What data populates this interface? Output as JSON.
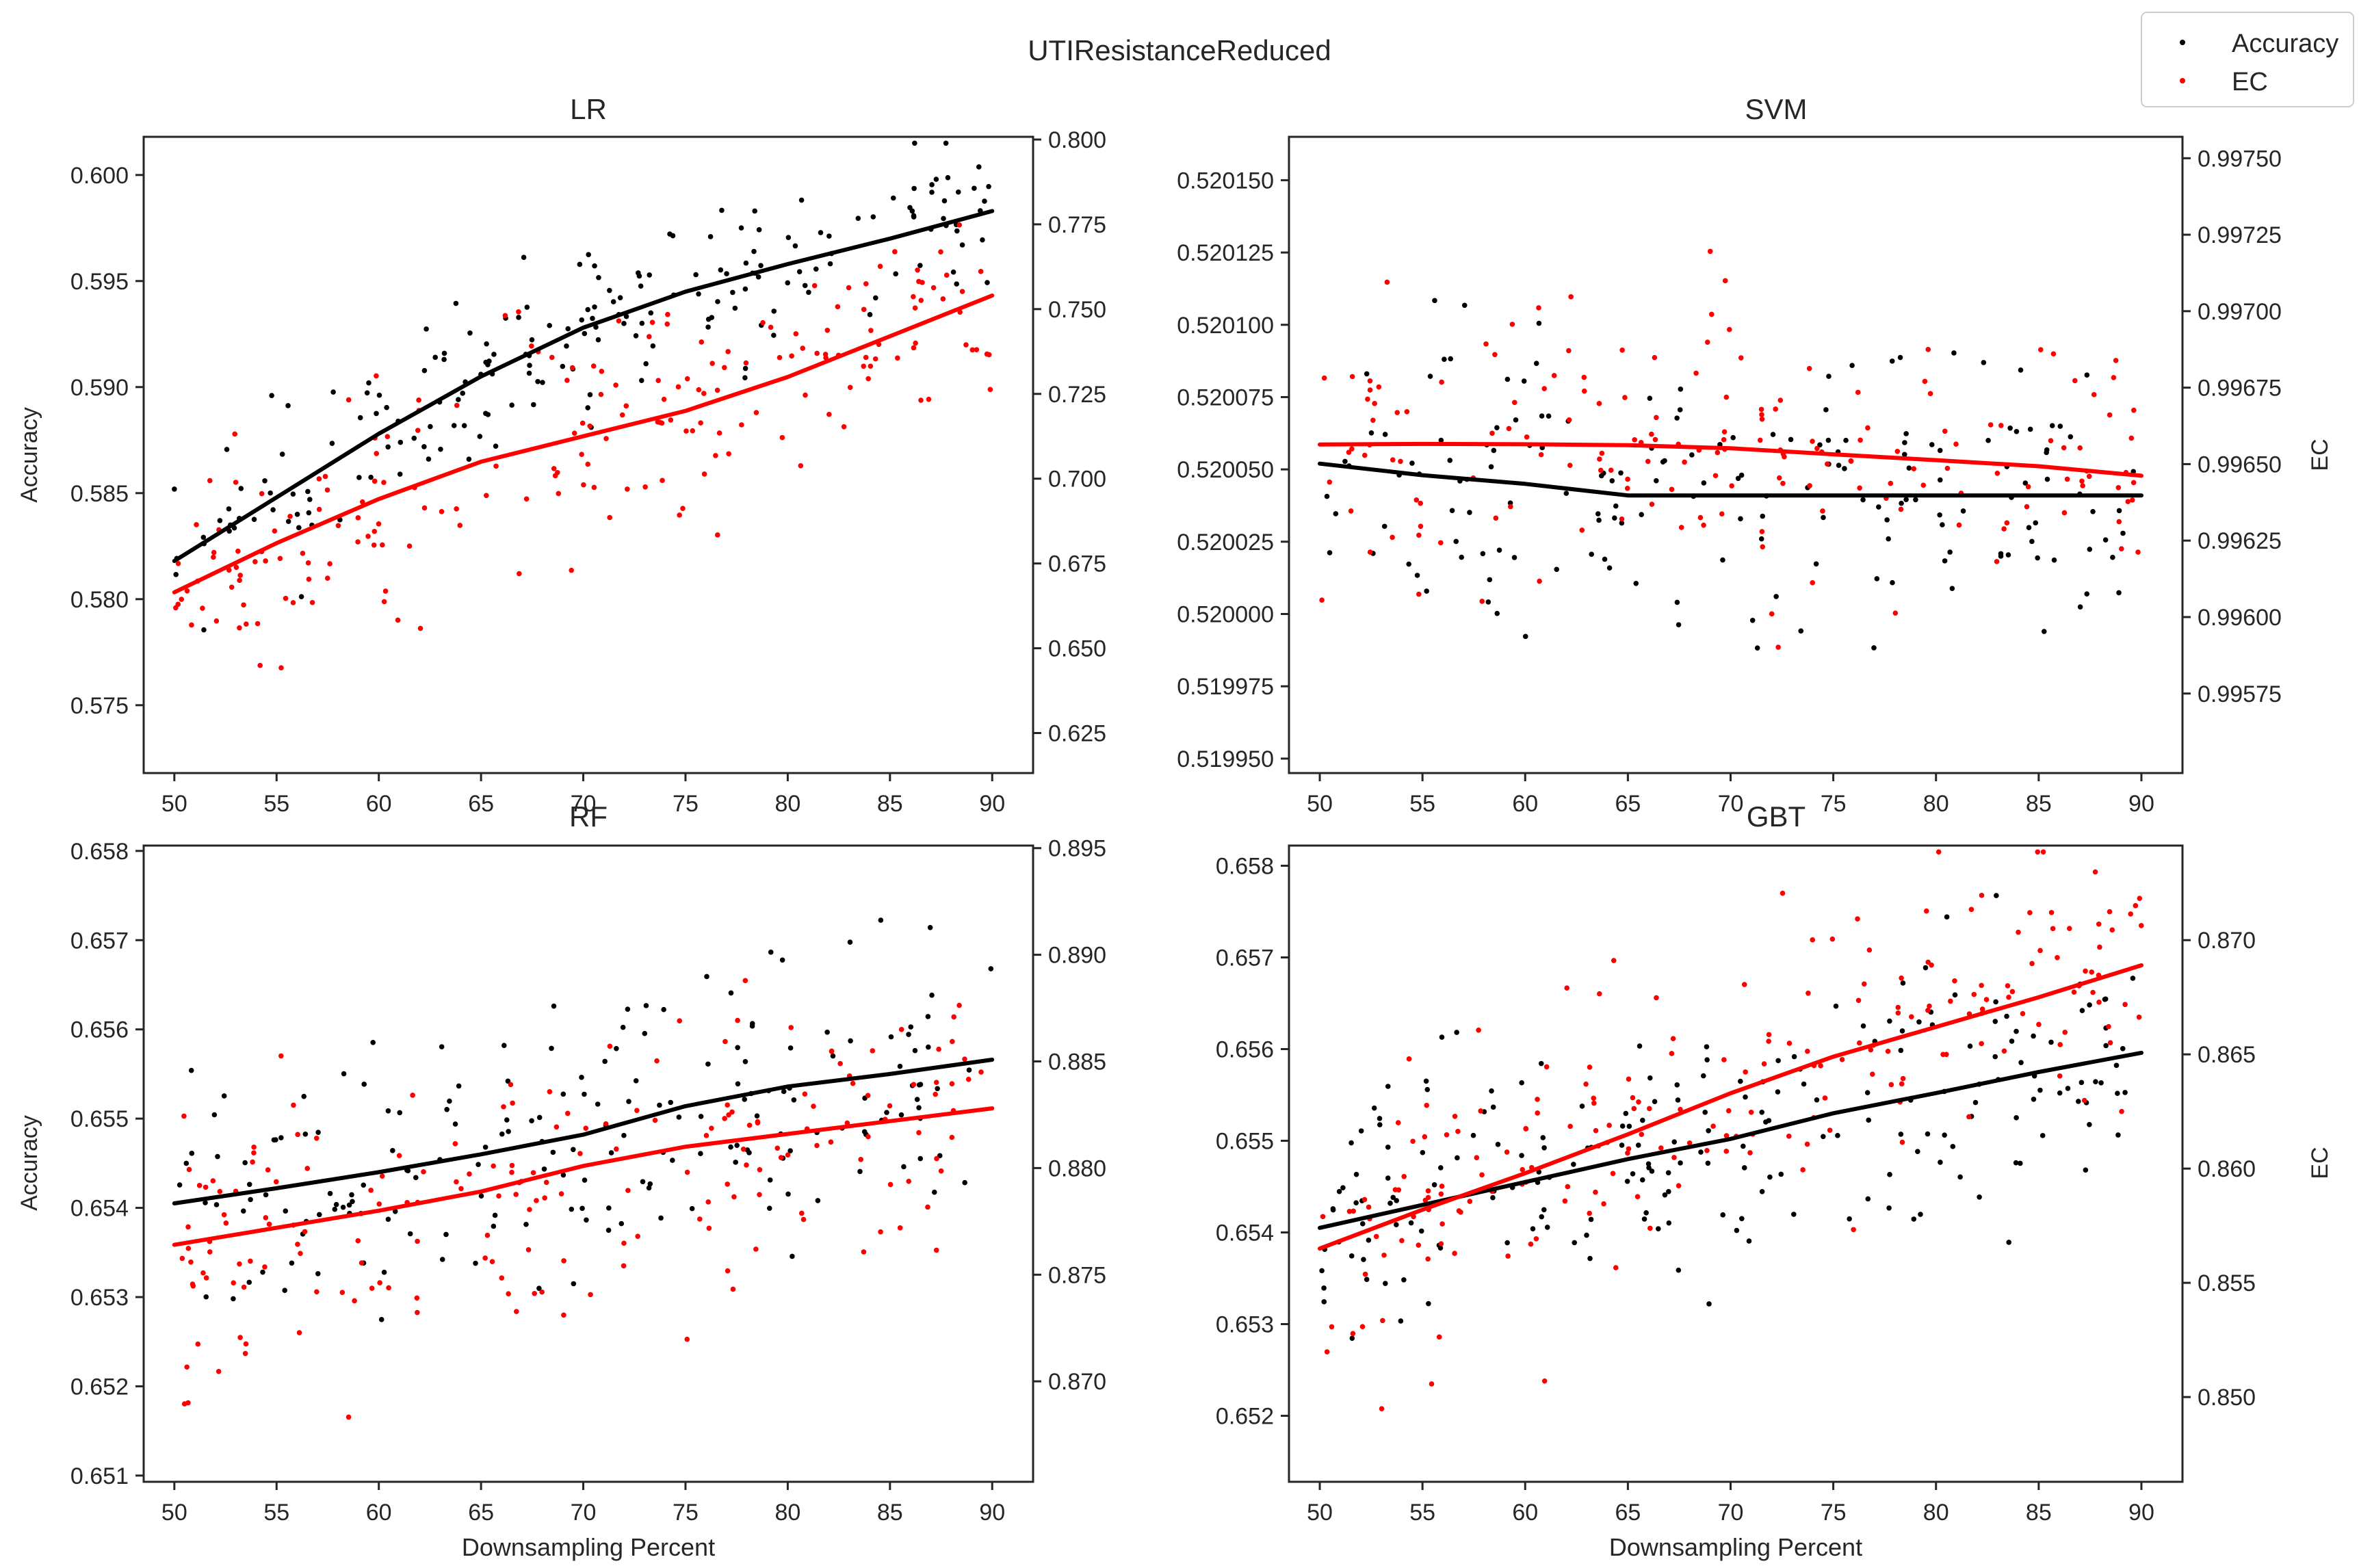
{
  "title": "UTIResistanceReduced",
  "legend": {
    "placement": "top-right",
    "items": [
      {
        "label": "Accuracy",
        "color": "#000000"
      },
      {
        "label": "EC",
        "color": "#ff0000"
      }
    ]
  },
  "x_ticks": [
    50,
    55,
    60,
    65,
    70,
    75,
    80,
    85,
    90
  ],
  "chart_data": [
    {
      "type": "scatter",
      "title": "LR",
      "xlabel": "",
      "ylabel": "Accuracy",
      "y2label": "",
      "xlim": [
        48.5,
        92
      ],
      "ylim": [
        0.5718,
        0.6018
      ],
      "y2lim": [
        0.6132,
        0.8008
      ],
      "yticks": [
        "0.575",
        "0.580",
        "0.585",
        "0.590",
        "0.595",
        "0.600"
      ],
      "y2ticks": [
        "0.625",
        "0.650",
        "0.675",
        "0.700",
        "0.725",
        "0.750",
        "0.775",
        "0.800"
      ],
      "accuracy_trend": [
        [
          50,
          0.5818
        ],
        [
          55,
          0.5848
        ],
        [
          60,
          0.5878
        ],
        [
          65,
          0.5905
        ],
        [
          70,
          0.5928
        ],
        [
          75,
          0.5945
        ],
        [
          80,
          0.5958
        ],
        [
          85,
          0.597
        ],
        [
          90,
          0.5983
        ]
      ],
      "ec_trend": [
        [
          50,
          0.6665
        ],
        [
          55,
          0.681
        ],
        [
          60,
          0.694
        ],
        [
          65,
          0.705
        ],
        [
          70,
          0.7125
        ],
        [
          75,
          0.72
        ],
        [
          80,
          0.73
        ],
        [
          85,
          0.742
        ],
        [
          90,
          0.754
        ]
      ],
      "accuracy_cloud": {
        "seed": 11,
        "n": 200,
        "spread": 0.0028
      },
      "ec_cloud": {
        "seed": 23,
        "n": 200,
        "spread": 0.024
      }
    },
    {
      "type": "scatter",
      "title": "SVM",
      "xlabel": "",
      "ylabel": "",
      "y2label": "EC",
      "xlim": [
        48.5,
        92
      ],
      "ylim": [
        0.519945,
        0.520165
      ],
      "y2lim": [
        0.99549,
        0.99757
      ],
      "yticks": [
        "0.519950",
        "0.519975",
        "0.520000",
        "0.520025",
        "0.520050",
        "0.520075",
        "0.520100",
        "0.520125",
        "0.520150"
      ],
      "y2ticks": [
        "0.99575",
        "0.99600",
        "0.99625",
        "0.99650",
        "0.99675",
        "0.99700",
        "0.99725",
        "0.99750"
      ],
      "accuracy_trend": [
        [
          50,
          0.520052
        ],
        [
          55,
          0.520048
        ],
        [
          60,
          0.520045
        ],
        [
          65,
          0.520041
        ],
        [
          70,
          0.520041
        ],
        [
          75,
          0.520041
        ],
        [
          80,
          0.520041
        ],
        [
          85,
          0.520041
        ],
        [
          90,
          0.520041
        ]
      ],
      "ec_trend": [
        [
          50,
          0.996564
        ],
        [
          55,
          0.996566
        ],
        [
          60,
          0.996565
        ],
        [
          65,
          0.996562
        ],
        [
          70,
          0.996552
        ],
        [
          75,
          0.996532
        ],
        [
          80,
          0.996513
        ],
        [
          85,
          0.996493
        ],
        [
          90,
          0.996462
        ]
      ],
      "accuracy_cloud": {
        "seed": 37,
        "n": 170,
        "spread": 3.4e-05
      },
      "ec_cloud": {
        "seed": 41,
        "n": 170,
        "spread": 0.0003
      }
    },
    {
      "type": "scatter",
      "title": "RF",
      "xlabel": "Downsampling Percent",
      "ylabel": "Accuracy",
      "y2label": "",
      "xlim": [
        48.5,
        92
      ],
      "ylim": [
        0.65093,
        0.65806
      ],
      "y2lim": [
        0.86529,
        0.89512
      ],
      "yticks": [
        "0.651",
        "0.652",
        "0.653",
        "0.654",
        "0.655",
        "0.656",
        "0.657",
        "0.658"
      ],
      "y2ticks": [
        "0.870",
        "0.875",
        "0.880",
        "0.885",
        "0.890",
        "0.895"
      ],
      "accuracy_trend": [
        [
          50,
          0.65405
        ],
        [
          55,
          0.65422
        ],
        [
          60,
          0.6544
        ],
        [
          65,
          0.6546
        ],
        [
          70,
          0.65482
        ],
        [
          75,
          0.65514
        ],
        [
          80,
          0.65536
        ],
        [
          85,
          0.6555
        ],
        [
          90,
          0.65566
        ]
      ],
      "ec_trend": [
        [
          50,
          0.8764
        ],
        [
          55,
          0.8772
        ],
        [
          60,
          0.878
        ],
        [
          65,
          0.8789
        ],
        [
          70,
          0.8801
        ],
        [
          75,
          0.881
        ],
        [
          80,
          0.8816
        ],
        [
          85,
          0.8822
        ],
        [
          90,
          0.8828
        ]
      ],
      "accuracy_cloud": {
        "seed": 53,
        "n": 190,
        "spread": 0.0011
      },
      "ec_cloud": {
        "seed": 67,
        "n": 190,
        "spread": 0.0045
      }
    },
    {
      "type": "scatter",
      "title": "GBT",
      "xlabel": "Downsampling Percent",
      "ylabel": "",
      "y2label": "EC",
      "xlim": [
        48.5,
        92
      ],
      "ylim": [
        0.65128,
        0.65822
      ],
      "y2lim": [
        0.84629,
        0.87414
      ],
      "yticks": [
        "0.652",
        "0.653",
        "0.654",
        "0.655",
        "0.656",
        "0.657",
        "0.658"
      ],
      "y2ticks": [
        "0.850",
        "0.855",
        "0.860",
        "0.865",
        "0.870"
      ],
      "accuracy_trend": [
        [
          50,
          0.65405
        ],
        [
          55,
          0.6543
        ],
        [
          60,
          0.65455
        ],
        [
          65,
          0.6548
        ],
        [
          70,
          0.65502
        ],
        [
          75,
          0.6553
        ],
        [
          80,
          0.65552
        ],
        [
          85,
          0.65575
        ],
        [
          90,
          0.65596
        ]
      ],
      "ec_trend": [
        [
          50,
          0.8565
        ],
        [
          55,
          0.8582
        ],
        [
          60,
          0.8598
        ],
        [
          65,
          0.8615
        ],
        [
          70,
          0.8633
        ],
        [
          75,
          0.8649
        ],
        [
          80,
          0.8662
        ],
        [
          85,
          0.8675
        ],
        [
          90,
          0.8689
        ]
      ],
      "accuracy_cloud": {
        "seed": 79,
        "n": 210,
        "spread": 0.0011
      },
      "ec_cloud": {
        "seed": 97,
        "n": 210,
        "spread": 0.0045
      }
    }
  ]
}
